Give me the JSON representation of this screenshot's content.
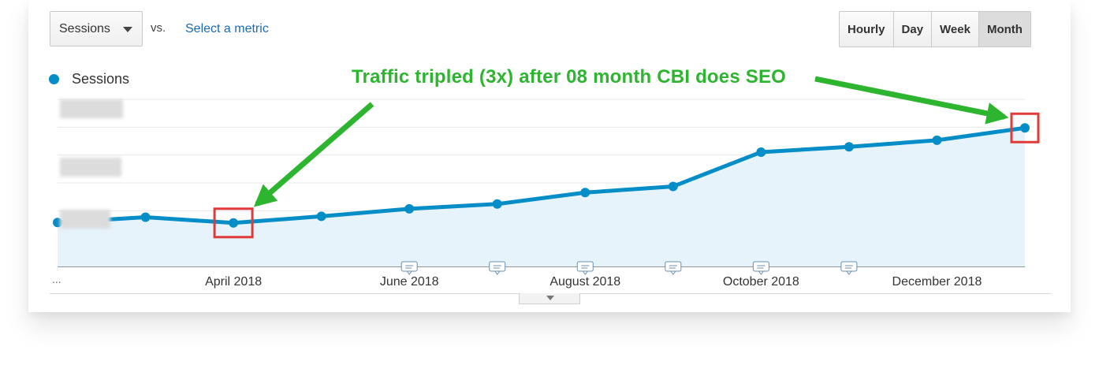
{
  "toolbar": {
    "metric_select_label": "Sessions",
    "vs_label": "vs.",
    "select_metric_label": "Select a metric",
    "granularity": [
      {
        "label": "Hourly",
        "active": false
      },
      {
        "label": "Day",
        "active": false
      },
      {
        "label": "Week",
        "active": false
      },
      {
        "label": "Month",
        "active": true
      }
    ]
  },
  "axis_footer": {
    "ellipsis": "..."
  },
  "annotation": {
    "text": "Traffic tripled (3x) after 08 month CBI does SEO",
    "color": "#2db52f"
  },
  "colors": {
    "series": "#058dc7",
    "area_fill": "#e6f3fa",
    "highlight_box": "#e03a3a"
  },
  "chart_data": {
    "type": "area",
    "legend": [
      "Sessions"
    ],
    "legend_position": "top-left",
    "x": [
      "2018-02",
      "2018-03",
      "2018-04",
      "2018-05",
      "2018-06",
      "2018-07",
      "2018-08",
      "2018-09",
      "2018-10",
      "2018-11",
      "2018-12",
      "2019-01"
    ],
    "x_tick_labels": [
      "April 2018",
      "June 2018",
      "August 2018",
      "October 2018",
      "December 2018"
    ],
    "x_tick_positions": [
      "2018-04",
      "2018-06",
      "2018-08",
      "2018-10",
      "2018-12"
    ],
    "series": [
      {
        "name": "Sessions",
        "values": [
          1.0,
          1.12,
          0.99,
          1.14,
          1.31,
          1.42,
          1.68,
          1.82,
          2.6,
          2.72,
          2.87,
          3.15
        ]
      }
    ],
    "ylim": [
      0,
      3.8
    ],
    "y_tick_labels_obscured": true,
    "grid": true,
    "highlighted_points": [
      "2018-04",
      "2019-01"
    ],
    "annotation_markers": [
      "2018-06",
      "2018-07",
      "2018-08",
      "2018-09",
      "2018-10",
      "2018-11"
    ]
  }
}
